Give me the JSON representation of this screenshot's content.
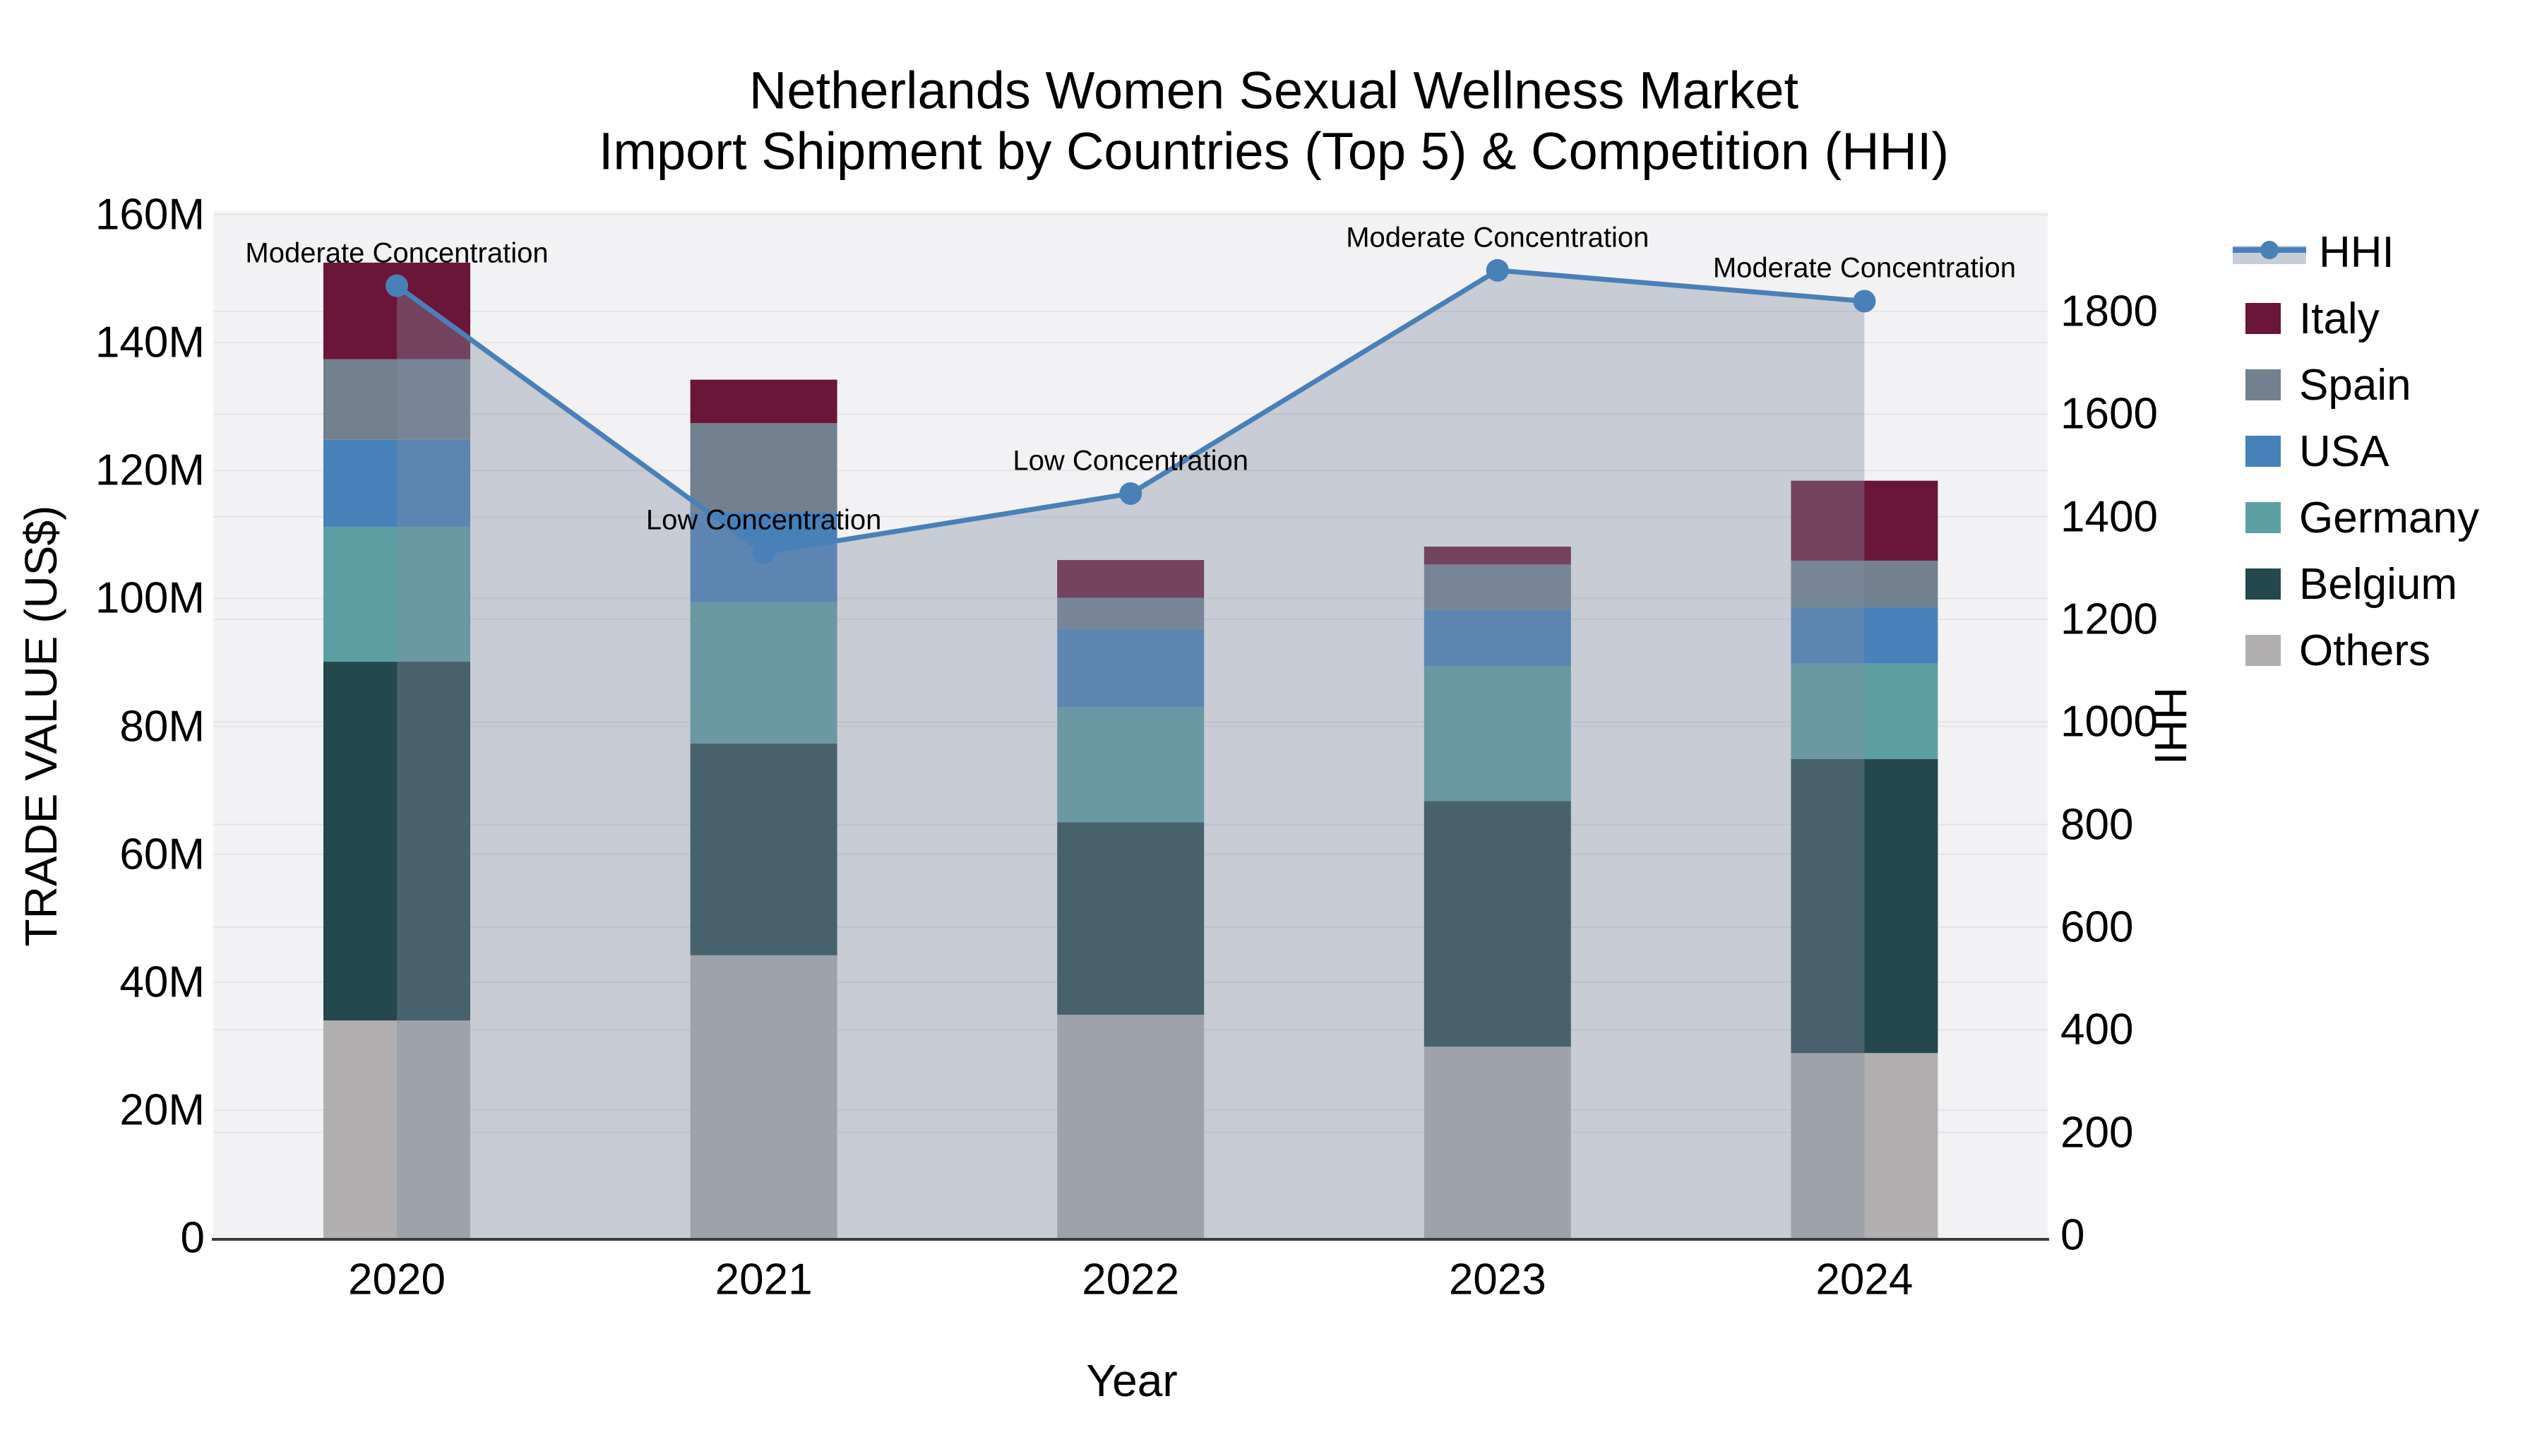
{
  "title": {
    "line1": "Netherlands Women Sexual Wellness Market",
    "line2": "Import Shipment by Countries (Top 5) & Competition (HHI)"
  },
  "axes": {
    "left": {
      "title": "TRADE VALUE (US$)",
      "tick_labels": [
        "0",
        "20M",
        "40M",
        "60M",
        "80M",
        "100M",
        "120M",
        "140M",
        "160M"
      ],
      "tick_values": [
        0,
        20,
        40,
        60,
        80,
        100,
        120,
        140,
        160
      ]
    },
    "right": {
      "title": "HHI",
      "tick_labels": [
        "0",
        "200",
        "400",
        "600",
        "800",
        "1000",
        "1200",
        "1400",
        "1600",
        "1800"
      ],
      "tick_values": [
        0,
        200,
        400,
        600,
        800,
        1000,
        1200,
        1400,
        1600,
        1800
      ]
    },
    "x": {
      "title": "Year",
      "tick_labels": [
        "2020",
        "2021",
        "2022",
        "2023",
        "2024"
      ]
    }
  },
  "legend": {
    "items": [
      {
        "label": "HHI",
        "type": "line"
      },
      {
        "label": "Italy",
        "type": "box",
        "color": "#6B1538"
      },
      {
        "label": "Spain",
        "type": "box",
        "color": "#72808F"
      },
      {
        "label": "USA",
        "type": "box",
        "color": "#4681BA"
      },
      {
        "label": "Germany",
        "type": "box",
        "color": "#5C9FA3"
      },
      {
        "label": "Belgium",
        "type": "box",
        "color": "#24484D"
      },
      {
        "label": "Others",
        "type": "box",
        "color": "#B1AFB0"
      }
    ]
  },
  "annotations": [
    {
      "year": "2020",
      "text": "Moderate Concentration"
    },
    {
      "year": "2021",
      "text": "Low Concentration"
    },
    {
      "year": "2022",
      "text": "Low Concentration"
    },
    {
      "year": "2023",
      "text": "Moderate Concentration"
    },
    {
      "year": "2024",
      "text": "Moderate Concentration"
    }
  ],
  "chart_data": {
    "type": "bar",
    "subtype": "stacked-bar-with-line",
    "title": "Netherlands Women Sexual Wellness Market — Import Shipment by Countries (Top 5) & Competition (HHI)",
    "categories": [
      "2020",
      "2021",
      "2022",
      "2023",
      "2024"
    ],
    "xlabel": "Year",
    "ylabel_left": "TRADE VALUE (US$), millions",
    "ylabel_right": "HHI",
    "ylim_left": [
      0,
      160.5
    ],
    "ylim_right": [
      0,
      2000
    ],
    "grid": true,
    "legend_position": "right",
    "stack_order_bottom_to_top": [
      "Others",
      "Belgium",
      "Germany",
      "USA",
      "Spain",
      "Italy"
    ],
    "series": [
      {
        "name": "Others",
        "color": "#B1AFB0",
        "values": [
          34.0,
          44.2,
          34.9,
          29.9,
          28.9
        ]
      },
      {
        "name": "Belgium",
        "color": "#24484D",
        "values": [
          56.1,
          33.1,
          30.1,
          38.4,
          46.0
        ]
      },
      {
        "name": "Germany",
        "color": "#5C9FA3",
        "values": [
          21.1,
          22.1,
          18.0,
          21.1,
          14.9
        ]
      },
      {
        "name": "USA",
        "color": "#4681BA",
        "values": [
          13.6,
          14.1,
          12.2,
          8.8,
          8.8
        ]
      },
      {
        "name": "Spain",
        "color": "#72808F",
        "values": [
          12.6,
          13.9,
          4.9,
          7.1,
          7.3
        ]
      },
      {
        "name": "Italy",
        "color": "#6B1538",
        "values": [
          15.1,
          6.8,
          5.9,
          2.8,
          12.5
        ]
      }
    ],
    "bar_totals": [
      152.5,
      134.2,
      106.0,
      108.1,
      118.4
    ],
    "line_series": {
      "name": "HHI",
      "axis": "right",
      "values": [
        1850,
        1330,
        1445,
        1880,
        1820
      ],
      "color": "#4A80B8",
      "area_fill": "rgba(128,142,163,0.38)",
      "markers": true
    },
    "colors": {
      "plot_background": "#F2F2F4",
      "gridline": "#E3E3E8",
      "axis_line": "#3B3B3B",
      "text": "#000000",
      "hhi_line": "#4A80B8",
      "legend_band": "#C7CDD6"
    }
  }
}
